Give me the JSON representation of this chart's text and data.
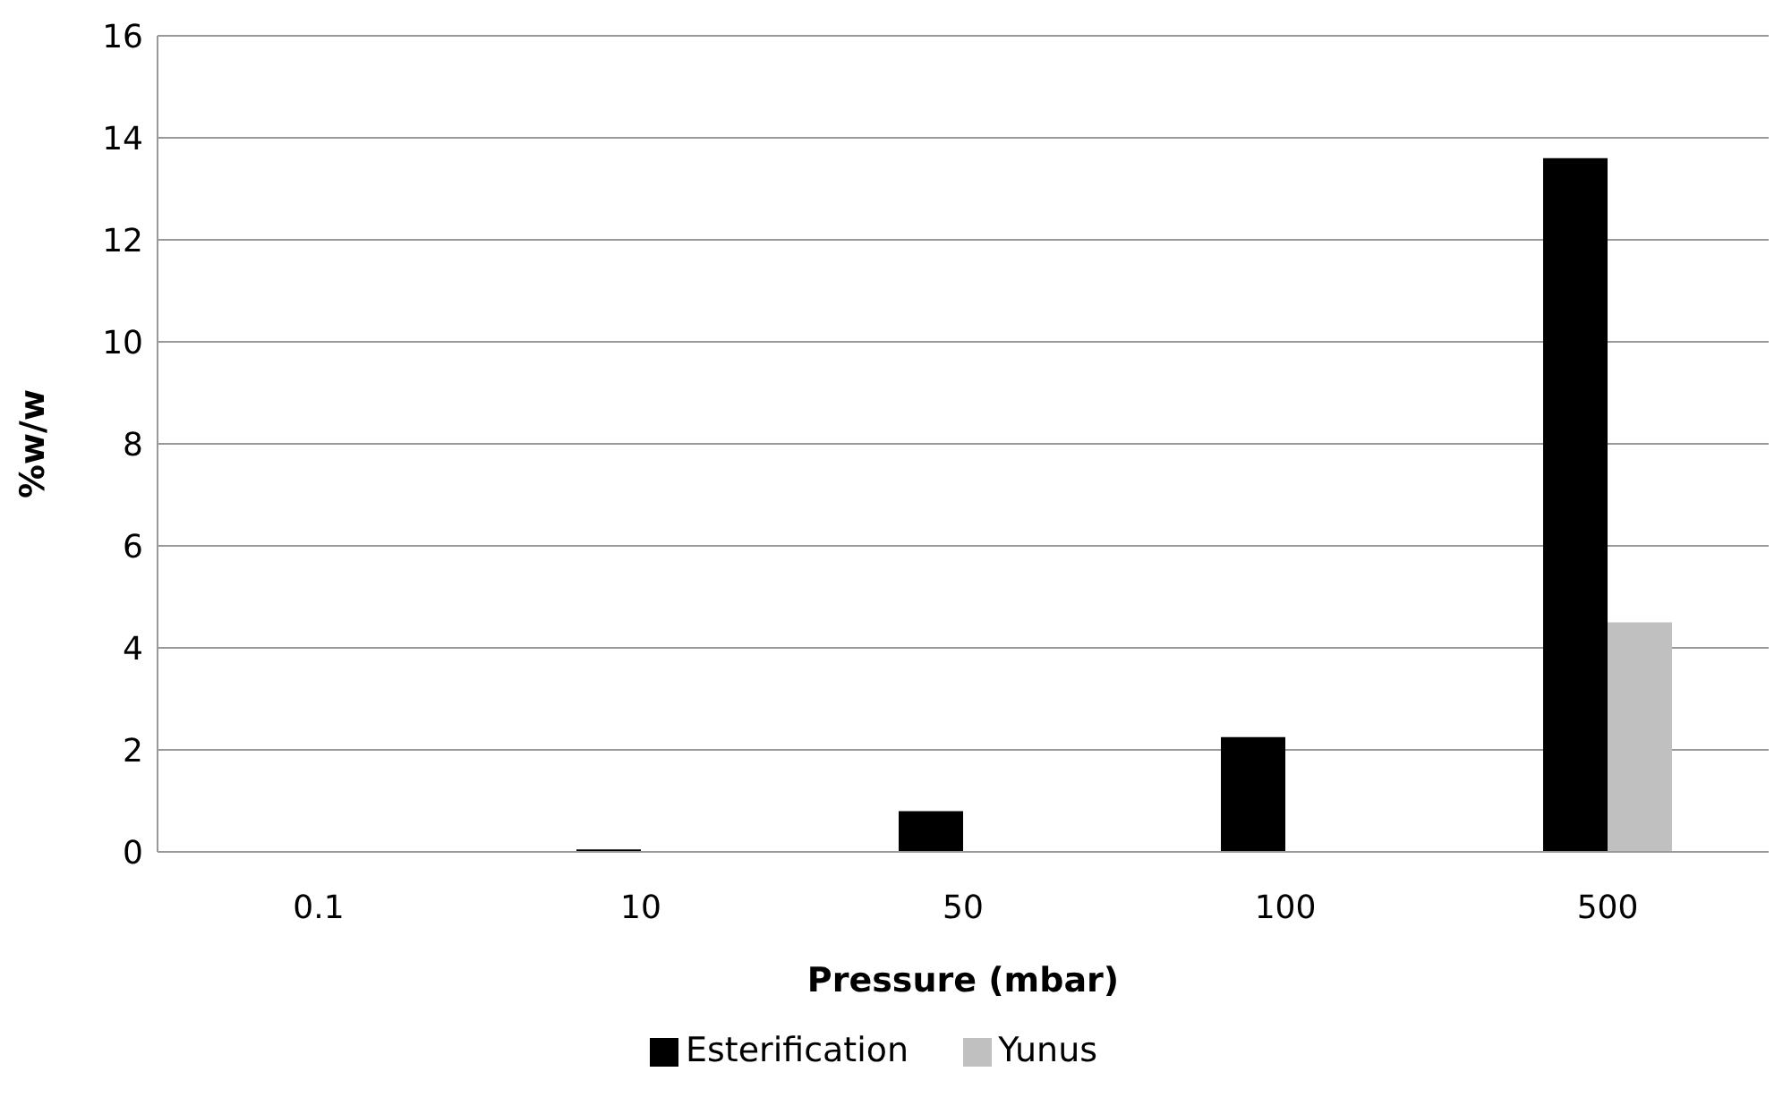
{
  "chart_data": {
    "type": "bar",
    "xlabel": "Pressure (mbar)",
    "ylabel": "%w/w",
    "categories": [
      "0.1",
      "10",
      "50",
      "100",
      "500"
    ],
    "series": [
      {
        "name": "Esterification",
        "color": "#000000",
        "values": [
          null,
          0.05,
          0.8,
          2.25,
          13.6
        ]
      },
      {
        "name": "Yunus",
        "color": "#c0c0c0",
        "values": [
          0,
          0,
          0,
          0,
          4.5
        ]
      }
    ],
    "ylim": [
      0,
      16
    ],
    "yticks": [
      0,
      2,
      4,
      6,
      8,
      10,
      12,
      14,
      16
    ],
    "grid": "y",
    "legend": "bottom"
  }
}
